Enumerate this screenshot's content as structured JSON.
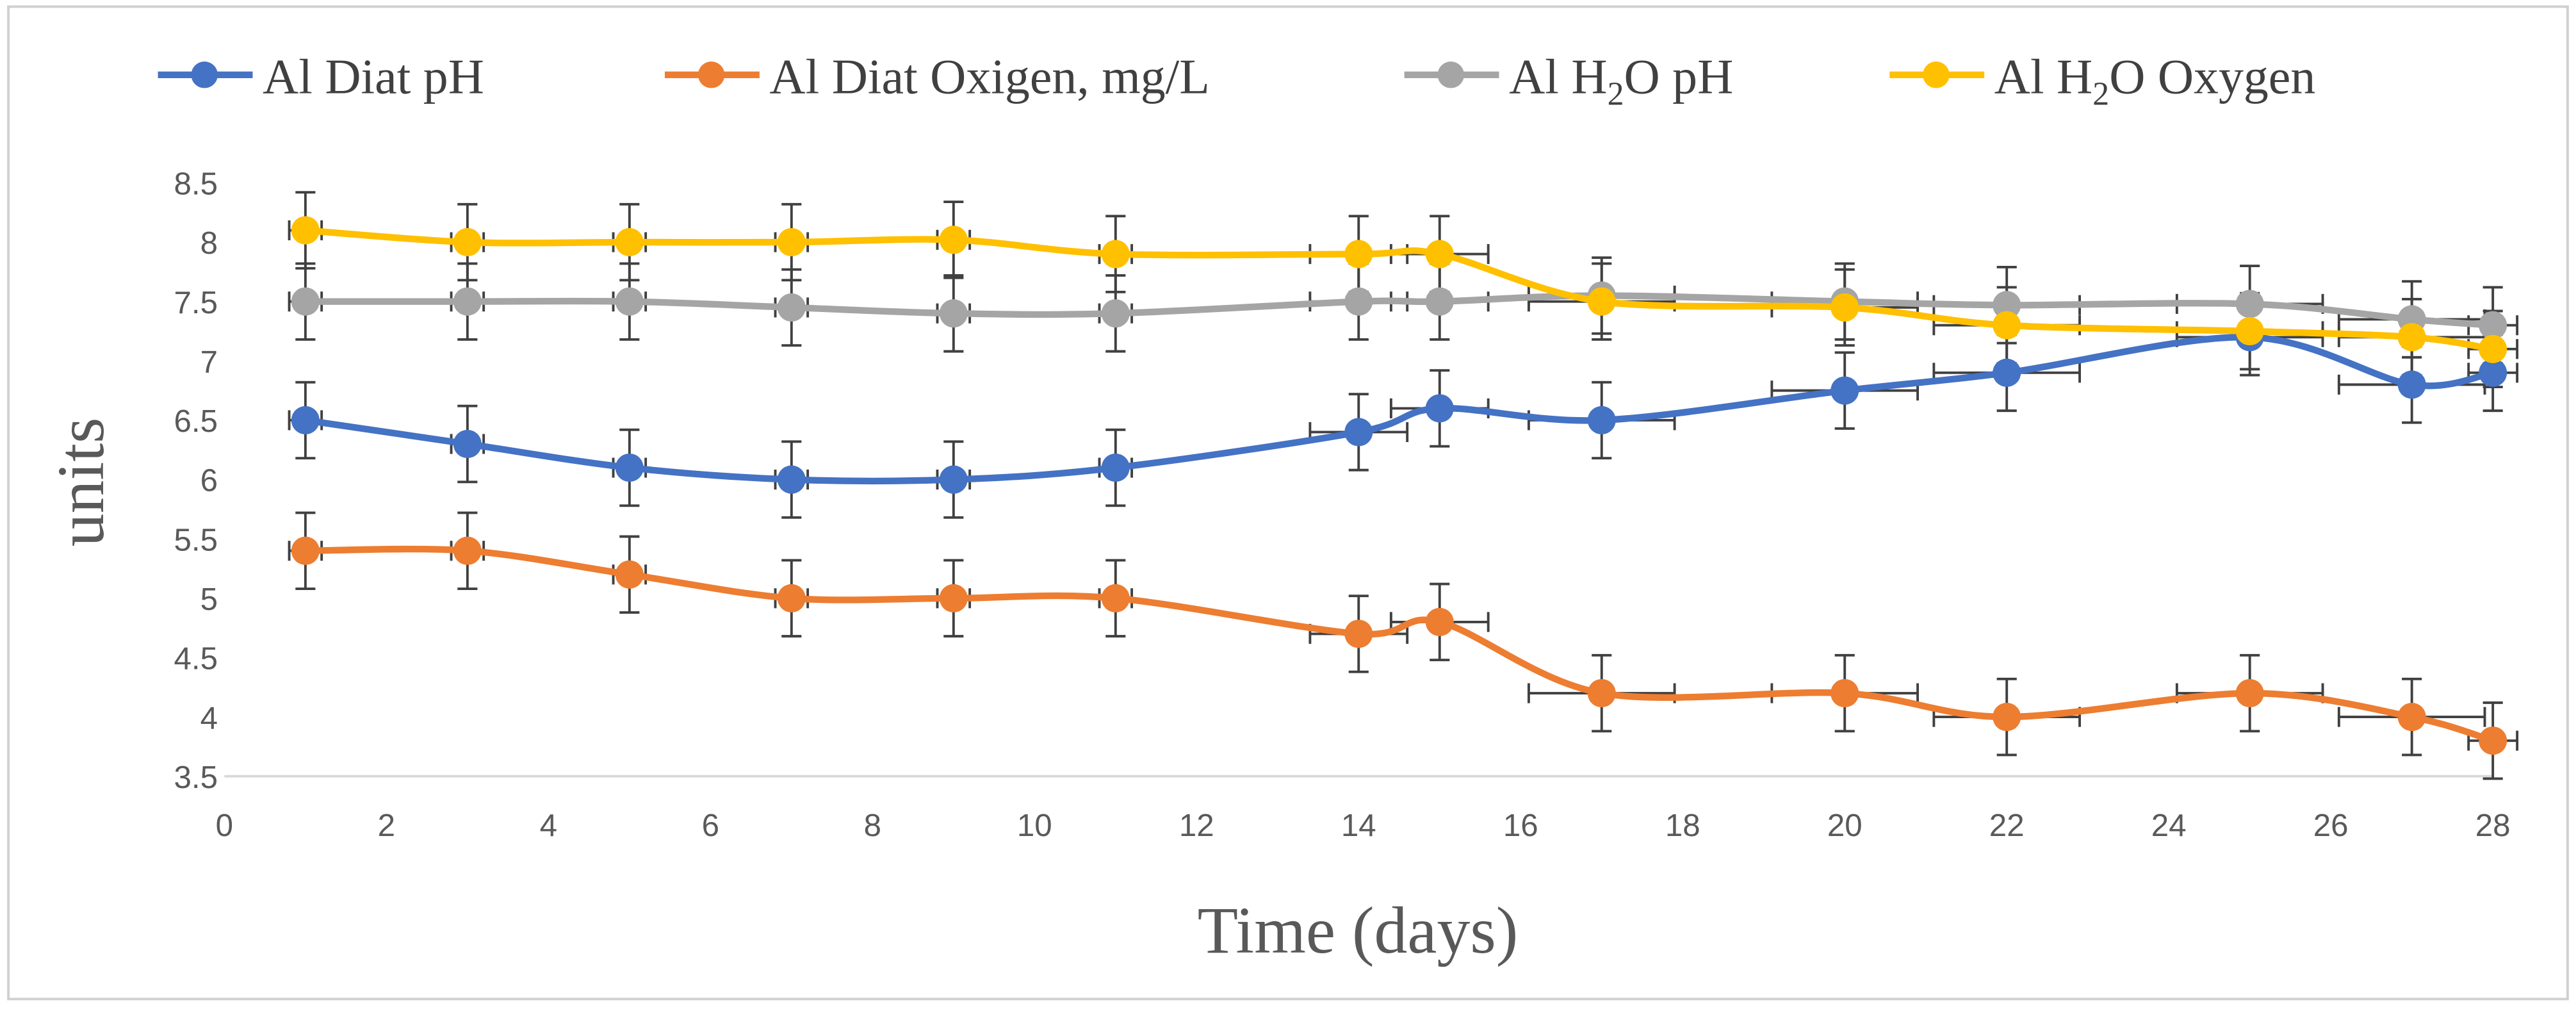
{
  "chart_data": {
    "type": "line",
    "title": "",
    "xlabel": "Time (days)",
    "ylabel": "units",
    "xlim": [
      0,
      28
    ],
    "ylim": [
      3.5,
      8.5
    ],
    "xticks": [
      "0",
      "2",
      "4",
      "6",
      "8",
      "10",
      "12",
      "14",
      "16",
      "18",
      "20",
      "22",
      "24",
      "26",
      "28"
    ],
    "yticks": [
      "3.5",
      "4",
      "4.5",
      "5",
      "5.5",
      "6",
      "6.5",
      "7",
      "7.5",
      "8",
      "8.5"
    ],
    "grid": false,
    "legend_position": "top",
    "x": [
      1,
      3,
      5,
      7,
      9,
      11,
      14,
      15,
      17,
      20,
      22,
      25,
      27,
      28
    ],
    "series": [
      {
        "name": "Al Diat pH",
        "color": "#4472C4",
        "values": [
          6.5,
          6.3,
          6.1,
          6.0,
          6.0,
          6.1,
          6.4,
          6.6,
          6.5,
          6.75,
          6.9,
          7.2,
          6.8,
          6.9
        ]
      },
      {
        "name": "Al Diat Oxigen, mg/L",
        "color": "#ED7D31",
        "values": [
          5.4,
          5.4,
          5.2,
          5.0,
          5.0,
          5.0,
          4.7,
          4.8,
          4.2,
          4.2,
          4.0,
          4.2,
          4.0,
          3.8
        ]
      },
      {
        "name": "Al H2O pH",
        "color": "#A5A5A5",
        "values": [
          7.5,
          7.5,
          7.5,
          7.45,
          7.4,
          7.4,
          7.5,
          7.5,
          7.55,
          7.5,
          7.47,
          7.48,
          7.35,
          7.3
        ]
      },
      {
        "name": "Al H2O Oxygen",
        "color": "#FFC000",
        "values": [
          8.1,
          8.0,
          8.0,
          8.0,
          8.02,
          7.9,
          7.9,
          7.9,
          7.5,
          7.45,
          7.3,
          7.25,
          7.2,
          7.1
        ]
      }
    ],
    "y_error": 0.32,
    "x_error": [
      0.2,
      0.2,
      0.2,
      0.2,
      0.2,
      0.2,
      0.6,
      0.6,
      0.9,
      0.9,
      0.9,
      0.9,
      0.9,
      0.3
    ]
  },
  "legend": {
    "s0": "Al Diat pH",
    "s1": "Al Diat Oxigen, mg/L",
    "s2_prefix": "Al H",
    "s2_sub": "2",
    "s2_suffix": "O pH",
    "s3_prefix": "Al H",
    "s3_sub": "2",
    "s3_suffix": "O Oxygen"
  }
}
